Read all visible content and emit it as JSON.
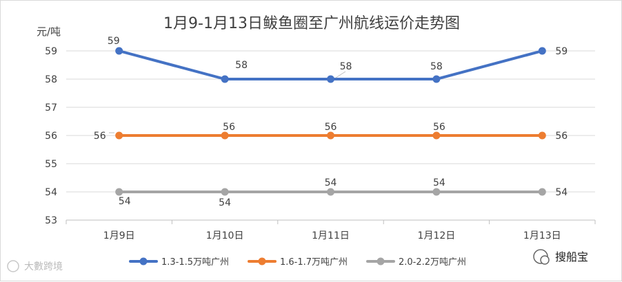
{
  "chart_data": {
    "type": "line",
    "title": "1月9-1月13日鲅鱼圈至广州航线运价走势图",
    "unit_label": "元/吨",
    "categories": [
      "1月9日",
      "1月10日",
      "1月11日",
      "1月12日",
      "1月13日"
    ],
    "ylim": [
      53,
      59
    ],
    "yticks": [
      53,
      54,
      55,
      56,
      57,
      58,
      59
    ],
    "grid": true,
    "legend": "bottom",
    "series": [
      {
        "name": "1.3-1.5万吨广州",
        "color": "#4472C4",
        "values": [
          59,
          58,
          58,
          58,
          59
        ]
      },
      {
        "name": "1.6-1.7万吨广州",
        "color": "#ED7D31",
        "values": [
          56,
          56,
          56,
          56,
          56
        ]
      },
      {
        "name": "2.0-2.2万吨广州",
        "color": "#A5A5A5",
        "values": [
          54,
          54,
          54,
          54,
          54
        ]
      }
    ]
  },
  "watermarks": {
    "left": "大數跨境",
    "right": "搜船宝"
  }
}
